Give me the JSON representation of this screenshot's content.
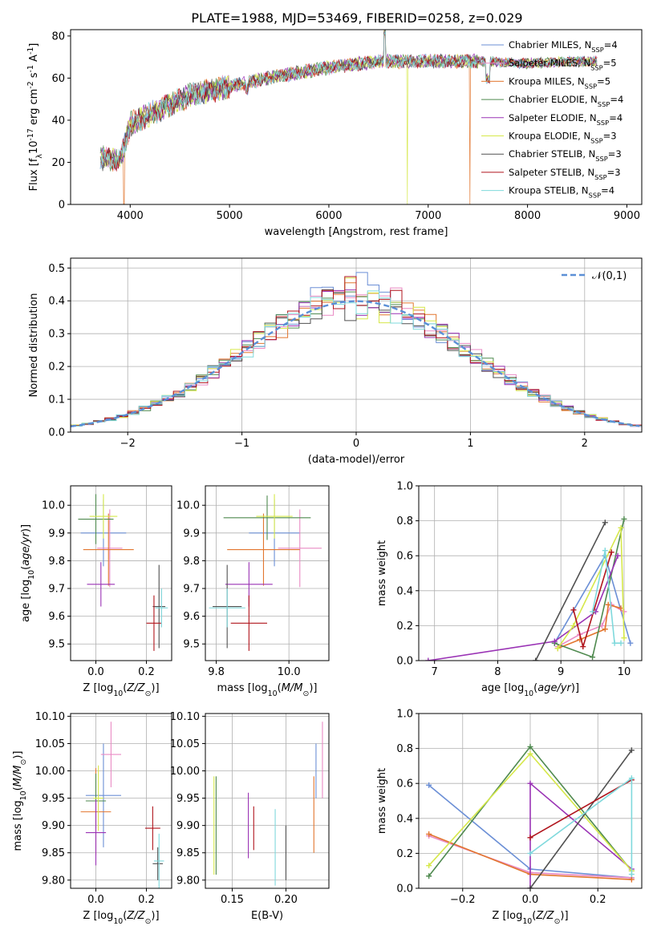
{
  "figure_title": "PLATE=1988, MJD=53469, FIBERID=0258, z=0.029",
  "models": [
    {
      "label": "Chabrier MILES, N$_{SSP}$=4",
      "name": "Chabrier MILES",
      "nssp": "4",
      "color": "#6b8fd6"
    },
    {
      "label": "Salpeter MILES, N$_{SSP}$=5",
      "name": "Salpeter MILES",
      "nssp": "5",
      "color": "#e98ac4"
    },
    {
      "label": "Kroupa MILES, N$_{SSP}$=5",
      "name": "Kroupa MILES",
      "nssp": "5",
      "color": "#e2762f"
    },
    {
      "label": "Chabrier ELODIE, N$_{SSP}$=4",
      "name": "Chabrier ELODIE",
      "nssp": "4",
      "color": "#4f8a4f"
    },
    {
      "label": "Salpeter ELODIE, N$_{SSP}$=4",
      "name": "Salpeter ELODIE",
      "nssp": "4",
      "color": "#9a33b5"
    },
    {
      "label": "Kroupa ELODIE, N$_{SSP}$=3",
      "name": "Kroupa ELODIE",
      "nssp": "3",
      "color": "#d6e84a"
    },
    {
      "label": "Chabrier STELIB, N$_{SSP}$=3",
      "name": "Chabrier STELIB",
      "nssp": "3",
      "color": "#505050"
    },
    {
      "label": "Salpeter STELIB, N$_{SSP}$=3",
      "name": "Salpeter STELIB",
      "nssp": "3",
      "color": "#b0141c"
    },
    {
      "label": "Kroupa STELIB, N$_{SSP}$=4",
      "name": "Kroupa STELIB",
      "nssp": "4",
      "color": "#7fd9dc"
    }
  ],
  "chart_data": [
    {
      "id": "spectrum",
      "type": "line",
      "xlabel": "wavelength [Angstrom, rest frame]",
      "ylabel": "Flux [f$_\\lambda$10$^{-17}$ erg cm$^{-2}$ s$^{-1}$ A$^{-1}$]",
      "xlim": [
        3400,
        9150
      ],
      "ylim": [
        0,
        83
      ],
      "xticks": [
        4000,
        5000,
        6000,
        7000,
        8000,
        9000
      ],
      "yticks": [
        0,
        20,
        40,
        60,
        80
      ],
      "grid": false,
      "legend": "right",
      "continuum": {
        "x": [
          3700,
          3900,
          4000,
          4300,
          4600,
          5000,
          5500,
          6000,
          6500,
          7000,
          7500,
          8000,
          8500,
          8700
        ],
        "y": [
          22,
          21,
          38,
          45,
          52,
          56,
          61,
          65,
          68,
          68,
          68,
          67,
          68,
          68
        ]
      },
      "drop_features": [
        {
          "x": 3935,
          "series": "Kroupa MILES"
        },
        {
          "x": 6790,
          "series": "Kroupa ELODIE"
        },
        {
          "x": 7420,
          "series": "Kroupa MILES"
        }
      ]
    },
    {
      "id": "residuals",
      "type": "step",
      "xlabel": "(data-model)/error",
      "ylabel": "Normed distribution",
      "xlim": [
        -2.5,
        2.5
      ],
      "ylim": [
        0,
        0.53
      ],
      "xticks": [
        -2,
        -1,
        0,
        1,
        2
      ],
      "yticks": [
        0.0,
        0.1,
        0.2,
        0.3,
        0.4,
        0.5
      ],
      "grid": true,
      "legend": "top-right",
      "reference": {
        "label": "$\\mathcal{N}(0,1)$",
        "mean": 0,
        "sigma": 1
      }
    },
    {
      "id": "age_vs_Z",
      "type": "errorbar",
      "xlabel": "Z [log$_{10}$($Z/Z_\\odot$)]",
      "ylabel": "age  [log$_{10}$($age/yr$)]",
      "xlim": [
        -0.1,
        0.3
      ],
      "ylim": [
        9.44,
        10.07
      ],
      "xticks": [
        0.0,
        0.2
      ],
      "yticks": [
        9.5,
        9.6,
        9.7,
        9.8,
        9.9,
        10.0
      ],
      "grid": true,
      "points": [
        {
          "x": 0.03,
          "y": 9.9,
          "xerr": 0.09,
          "yerr": 0.12
        },
        {
          "x": 0.055,
          "y": 9.845,
          "xerr": 0.05,
          "yerr": 0.14
        },
        {
          "x": 0.05,
          "y": 9.84,
          "xerr": 0.1,
          "yerr": 0.13
        },
        {
          "x": 0.0,
          "y": 9.95,
          "xerr": 0.07,
          "yerr": 0.09
        },
        {
          "x": 0.02,
          "y": 9.715,
          "xerr": 0.055,
          "yerr": 0.08
        },
        {
          "x": 0.03,
          "y": 9.96,
          "xerr": 0.055,
          "yerr": 0.08
        },
        {
          "x": 0.25,
          "y": 9.635,
          "xerr": 0.025,
          "yerr": 0.15
        },
        {
          "x": 0.23,
          "y": 9.575,
          "xerr": 0.03,
          "yerr": 0.1
        },
        {
          "x": 0.26,
          "y": 9.63,
          "xerr": 0.025,
          "yerr": 0.07
        }
      ]
    },
    {
      "id": "age_vs_mass",
      "type": "errorbar",
      "xlabel": "mass [log$_{10}$($M/M_\\odot$)]",
      "ylabel": "",
      "xlim": [
        9.77,
        10.11
      ],
      "ylim": [
        9.44,
        10.07
      ],
      "xticks": [
        9.8,
        10.0
      ],
      "yticks": [
        9.5,
        9.6,
        9.7,
        9.8,
        9.9,
        10.0
      ],
      "grid": true,
      "points": [
        {
          "x": 9.96,
          "y": 9.9,
          "xerr": 0.07,
          "yerr": 0.12
        },
        {
          "x": 10.03,
          "y": 9.845,
          "xerr": 0.06,
          "yerr": 0.14
        },
        {
          "x": 9.93,
          "y": 9.84,
          "xerr": 0.1,
          "yerr": 0.13
        },
        {
          "x": 9.94,
          "y": 9.955,
          "xerr": 0.12,
          "yerr": 0.08
        },
        {
          "x": 9.89,
          "y": 9.715,
          "xerr": 0.065,
          "yerr": 0.08
        },
        {
          "x": 9.96,
          "y": 9.96,
          "xerr": 0.05,
          "yerr": 0.08
        },
        {
          "x": 9.83,
          "y": 9.635,
          "xerr": 0.04,
          "yerr": 0.15
        },
        {
          "x": 9.89,
          "y": 9.575,
          "xerr": 0.05,
          "yerr": 0.1
        },
        {
          "x": 9.83,
          "y": 9.63,
          "xerr": 0.05,
          "yerr": 0.07
        }
      ]
    },
    {
      "id": "weight_vs_age",
      "type": "line",
      "xlabel": "age  [log$_{10}$($age/yr$)]",
      "ylabel": "mass weight",
      "xlim": [
        6.75,
        10.28
      ],
      "ylim": [
        0.0,
        1.0
      ],
      "xticks": [
        7,
        8,
        9,
        10
      ],
      "yticks": [
        0.0,
        0.2,
        0.4,
        0.6,
        0.8,
        1.0
      ],
      "grid": true,
      "series": [
        {
          "model": "Chabrier MILES",
          "x": [
            8.9,
            9.7,
            10.1
          ],
          "y": [
            0.1,
            0.6,
            0.1
          ]
        },
        {
          "model": "Salpeter MILES",
          "x": [
            8.95,
            9.3,
            9.65,
            9.8,
            10.0
          ],
          "y": [
            0.08,
            0.15,
            0.2,
            0.32,
            0.28
          ]
        },
        {
          "model": "Kroupa MILES",
          "x": [
            8.95,
            9.3,
            9.7,
            9.75,
            9.95
          ],
          "y": [
            0.07,
            0.12,
            0.18,
            0.32,
            0.3
          ]
        },
        {
          "model": "Chabrier ELODIE",
          "x": [
            8.9,
            9.5,
            10.0
          ],
          "y": [
            0.1,
            0.02,
            0.81
          ]
        },
        {
          "model": "Salpeter ELODIE",
          "x": [
            6.9,
            8.9,
            9.55,
            9.9
          ],
          "y": [
            0.0,
            0.11,
            0.28,
            0.6
          ]
        },
        {
          "model": "Kroupa ELODIE",
          "x": [
            8.95,
            9.2,
            9.95,
            10.0
          ],
          "y": [
            0.07,
            0.2,
            0.76,
            0.13
          ]
        },
        {
          "model": "Chabrier STELIB",
          "x": [
            8.6,
            9.7
          ],
          "y": [
            0.0,
            0.79
          ]
        },
        {
          "model": "Salpeter STELIB",
          "x": [
            9.2,
            9.35,
            9.8
          ],
          "y": [
            0.29,
            0.08,
            0.62
          ]
        },
        {
          "model": "Kroupa STELIB",
          "x": [
            9.5,
            9.7,
            9.85,
            9.95
          ],
          "y": [
            0.28,
            0.63,
            0.1,
            0.1
          ]
        }
      ]
    },
    {
      "id": "mass_vs_Z",
      "type": "errorbar",
      "xlabel": "Z [log$_{10}$($Z/Z_\\odot$)]",
      "ylabel": "mass [log$_{10}$($M/M_\\odot$)]",
      "xlim": [
        -0.1,
        0.3
      ],
      "ylim": [
        9.785,
        10.105
      ],
      "xticks": [
        0.0,
        0.2
      ],
      "yticks": [
        9.8,
        9.85,
        9.9,
        9.95,
        10.0,
        10.05,
        10.1
      ],
      "grid": true,
      "points": [
        {
          "x": 0.03,
          "y": 9.955,
          "xerr": 0.07,
          "yerr": 0.095
        },
        {
          "x": 0.06,
          "y": 10.03,
          "xerr": 0.04,
          "yerr": 0.06
        },
        {
          "x": 0.0,
          "y": 9.925,
          "xerr": 0.06,
          "yerr": 0.08
        },
        {
          "x": 0.0,
          "y": 9.945,
          "xerr": 0.04,
          "yerr": 0.05
        },
        {
          "x": 0.0,
          "y": 9.887,
          "xerr": 0.04,
          "yerr": 0.06
        },
        {
          "x": 0.01,
          "y": 9.95,
          "xerr": 0.02,
          "yerr": 0.06
        },
        {
          "x": 0.245,
          "y": 9.83,
          "xerr": 0.02,
          "yerr": 0.03
        },
        {
          "x": 0.225,
          "y": 9.895,
          "xerr": 0.03,
          "yerr": 0.04
        },
        {
          "x": 0.25,
          "y": 9.835,
          "xerr": 0.02,
          "yerr": 0.05
        }
      ]
    },
    {
      "id": "mass_vs_EBV",
      "type": "errorbar",
      "xlabel": "E(B-V)",
      "ylabel": "",
      "xlim": [
        0.125,
        0.24
      ],
      "ylim": [
        9.785,
        10.105
      ],
      "xticks": [
        0.15,
        0.2
      ],
      "yticks": [
        9.8,
        9.85,
        9.9,
        9.95,
        10.0,
        10.05,
        10.1
      ],
      "grid": true,
      "points": [
        {
          "x": 0.228,
          "y": 10.0,
          "xerr": 0.0,
          "yerr": 0.05
        },
        {
          "x": 0.234,
          "y": 10.02,
          "xerr": 0.0,
          "yerr": 0.07
        },
        {
          "x": 0.226,
          "y": 9.92,
          "xerr": 0.0,
          "yerr": 0.07
        },
        {
          "x": 0.135,
          "y": 9.9,
          "xerr": 0.0,
          "yerr": 0.09
        },
        {
          "x": 0.165,
          "y": 9.9,
          "xerr": 0.0,
          "yerr": 0.06
        },
        {
          "x": 0.133,
          "y": 9.9,
          "xerr": 0.0,
          "yerr": 0.09
        },
        {
          "x": 0.2,
          "y": 9.85,
          "xerr": 0.0,
          "yerr": 0.05
        },
        {
          "x": 0.17,
          "y": 9.895,
          "xerr": 0.0,
          "yerr": 0.04
        },
        {
          "x": 0.19,
          "y": 9.86,
          "xerr": 0.0,
          "yerr": 0.07
        }
      ]
    },
    {
      "id": "weight_vs_Z",
      "type": "line",
      "xlabel": "Z [log$_{10}$($Z/Z_\\odot$)]",
      "ylabel": "mass weight",
      "xlim": [
        -0.33,
        0.33
      ],
      "ylim": [
        0.0,
        1.0
      ],
      "xticks": [
        -0.2,
        0.0,
        0.2
      ],
      "yticks": [
        0.0,
        0.2,
        0.4,
        0.6,
        0.8,
        1.0
      ],
      "grid": true,
      "series": [
        {
          "model": "Chabrier MILES",
          "x": [
            -0.3,
            0.0,
            0.3
          ],
          "y": [
            0.59,
            0.11,
            0.06
          ]
        },
        {
          "model": "Salpeter MILES",
          "x": [
            -0.3,
            0.0,
            0.3
          ],
          "y": [
            0.3,
            0.09,
            0.06
          ]
        },
        {
          "model": "Kroupa MILES",
          "x": [
            -0.3,
            0.0,
            0.3
          ],
          "y": [
            0.31,
            0.08,
            0.05
          ]
        },
        {
          "model": "Chabrier ELODIE",
          "x": [
            -0.3,
            0.0,
            0.3
          ],
          "y": [
            0.07,
            0.81,
            0.1
          ]
        },
        {
          "model": "Salpeter ELODIE",
          "x": [
            0.0,
            0.0,
            0.3
          ],
          "y": [
            0.0,
            0.6,
            0.11
          ]
        },
        {
          "model": "Kroupa ELODIE",
          "x": [
            -0.3,
            0.0,
            0.3
          ],
          "y": [
            0.13,
            0.77,
            0.1
          ]
        },
        {
          "model": "Chabrier STELIB",
          "x": [
            0.0,
            0.3
          ],
          "y": [
            0.0,
            0.79
          ]
        },
        {
          "model": "Salpeter STELIB",
          "x": [
            0.0,
            0.3
          ],
          "y": [
            0.29,
            0.62
          ]
        },
        {
          "model": "Kroupa STELIB",
          "x": [
            0.0,
            0.3,
            0.3
          ],
          "y": [
            0.2,
            0.63,
            0.08
          ]
        }
      ]
    }
  ]
}
